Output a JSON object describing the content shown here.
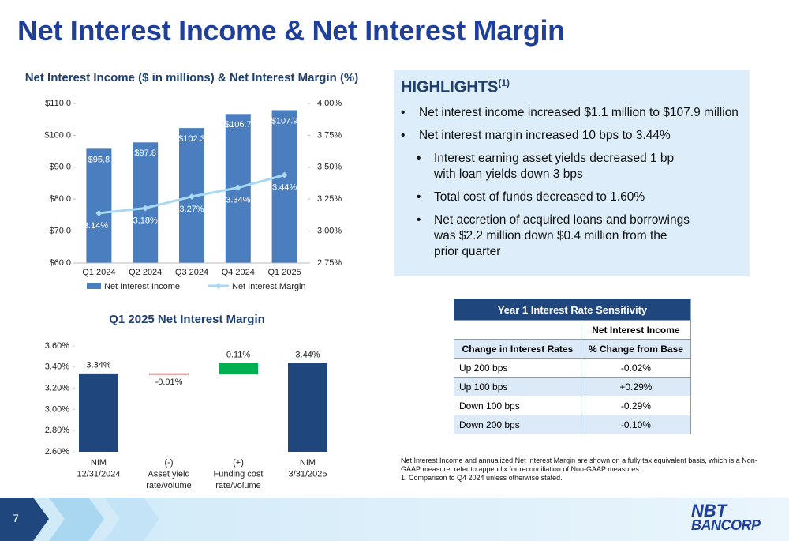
{
  "title": "Net Interest Income & Net Interest Margin",
  "chart_data": [
    {
      "type": "combo",
      "title": "Net Interest Income ($ in millions) & Net Interest Margin (%)",
      "categories": [
        "Q1 2024",
        "Q2 2024",
        "Q3 2024",
        "Q4 2024",
        "Q1 2025"
      ],
      "series": [
        {
          "name": "Net Interest Income",
          "kind": "bar",
          "color": "#4a7ebf",
          "values": [
            95.8,
            97.8,
            102.3,
            106.7,
            107.9
          ],
          "value_labels": [
            "$95.8",
            "$97.8",
            "$102.3",
            "$106.7",
            "$107.9"
          ]
        },
        {
          "name": "Net Interest Margin",
          "kind": "line",
          "axis": "y2",
          "color": "#a9d8f2",
          "values": [
            3.14,
            3.18,
            3.27,
            3.34,
            3.44
          ],
          "value_labels": [
            "3.14%",
            "3.18%",
            "3.27%",
            "3.34%",
            "3.44%"
          ]
        }
      ],
      "ylim": [
        60,
        110
      ],
      "yticks": [
        {
          "value": 60,
          "label": "$60.0"
        },
        {
          "value": 70,
          "label": "$70.0"
        },
        {
          "value": 80,
          "label": "$80.0"
        },
        {
          "value": 90,
          "label": "$90.0"
        },
        {
          "value": 100,
          "label": "$100.0"
        },
        {
          "value": 110,
          "label": "$110.0"
        }
      ],
      "y2lim": [
        2.75,
        4.0
      ],
      "y2ticks": [
        {
          "value": 2.75,
          "label": "2.75%"
        },
        {
          "value": 3.0,
          "label": "3.00%"
        },
        {
          "value": 3.25,
          "label": "3.25%"
        },
        {
          "value": 3.5,
          "label": "3.50%"
        },
        {
          "value": 3.75,
          "label": "3.75%"
        },
        {
          "value": 4.0,
          "label": "4.00%"
        }
      ],
      "legend": "bottom"
    },
    {
      "type": "waterfall",
      "title": "Q1 2025 Net Interest Margin",
      "categories": [
        [
          "NIM",
          "12/31/2024"
        ],
        [
          "(-)",
          "Asset yield",
          "rate/volume"
        ],
        [
          "(+)",
          "Funding cost",
          "rate/volume"
        ],
        [
          "NIM",
          "3/31/2025"
        ]
      ],
      "values": [
        3.34,
        -0.01,
        0.11,
        3.44
      ],
      "value_labels": [
        "3.34%",
        "-0.01%",
        "0.11%",
        "3.44%"
      ],
      "colors": [
        "#1f477d",
        "#c00000",
        "#00b050",
        "#1f477d"
      ],
      "ylim": [
        2.6,
        3.6
      ],
      "yticks": [
        {
          "value": 2.6,
          "label": "2.60%"
        },
        {
          "value": 2.8,
          "label": "2.80%"
        },
        {
          "value": 3.0,
          "label": "3.00%"
        },
        {
          "value": 3.2,
          "label": "3.20%"
        },
        {
          "value": 3.4,
          "label": "3.40%"
        },
        {
          "value": 3.6,
          "label": "3.60%"
        }
      ]
    }
  ],
  "highlights": {
    "title": "HIGHLIGHTS",
    "title_sup": "(1)",
    "bullets": [
      {
        "level": 1,
        "text": "Net interest income increased $1.1 million to $107.9 million"
      },
      {
        "level": 1,
        "text": "Net interest margin increased 10 bps to 3.44%"
      },
      {
        "level": 2,
        "text": "Interest earning asset yields decreased 1 bp with loan yields down 3 bps"
      },
      {
        "level": 2,
        "text": "Total cost of funds decreased to 1.60%"
      },
      {
        "level": 2,
        "text": "Net accretion of acquired loans and borrowings was $2.2 million down $0.4 million from the prior quarter"
      }
    ]
  },
  "table": {
    "title": "Year 1 Interest Rate Sensitivity",
    "column_group": "Net Interest Income",
    "columns": [
      "Change in Interest Rates",
      "% Change from Base"
    ],
    "rows": [
      [
        "Up 200 bps",
        "-0.02%"
      ],
      [
        "Up 100 bps",
        "+0.29%"
      ],
      [
        "Down 100 bps",
        "-0.29%"
      ],
      [
        "Down 200 bps",
        "-0.10%"
      ]
    ]
  },
  "footnotes": [
    "Net Interest Income and annualized Net Interest Margin are shown on a fully tax equivalent basis, which is a Non-GAAP measure; refer to appendix for reconciliation of Non-GAAP measures.",
    "1. Comparison to Q4 2024 unless otherwise stated."
  ],
  "page_number": "7",
  "logo": [
    "NBT",
    "BANCORP"
  ]
}
